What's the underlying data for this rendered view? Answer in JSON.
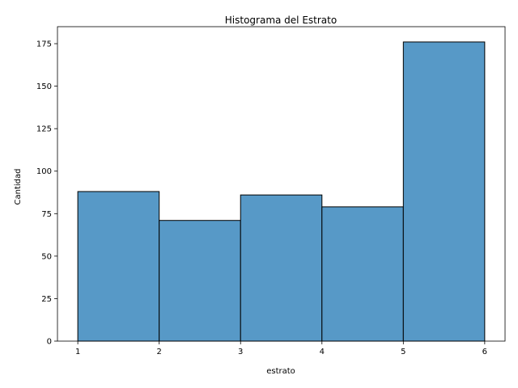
{
  "chart_data": {
    "type": "bar",
    "subtype": "histogram",
    "title": "Histograma del Estrato",
    "xlabel": "estrato",
    "ylabel": "Cantidad",
    "bins": [
      {
        "start": 1,
        "end": 2,
        "value": 88
      },
      {
        "start": 2,
        "end": 3,
        "value": 71
      },
      {
        "start": 3,
        "end": 4,
        "value": 86
      },
      {
        "start": 4,
        "end": 5,
        "value": 79
      },
      {
        "start": 5,
        "end": 6,
        "value": 176
      }
    ],
    "xlim": [
      0.75,
      6.25
    ],
    "ylim": [
      0,
      185
    ],
    "xticks": [
      1,
      2,
      3,
      4,
      5,
      6
    ],
    "yticks": [
      0,
      25,
      50,
      75,
      100,
      125,
      150,
      175
    ],
    "grid": false,
    "legend": "none",
    "bar_color": "#5799c7",
    "edge_color": "#000000"
  }
}
